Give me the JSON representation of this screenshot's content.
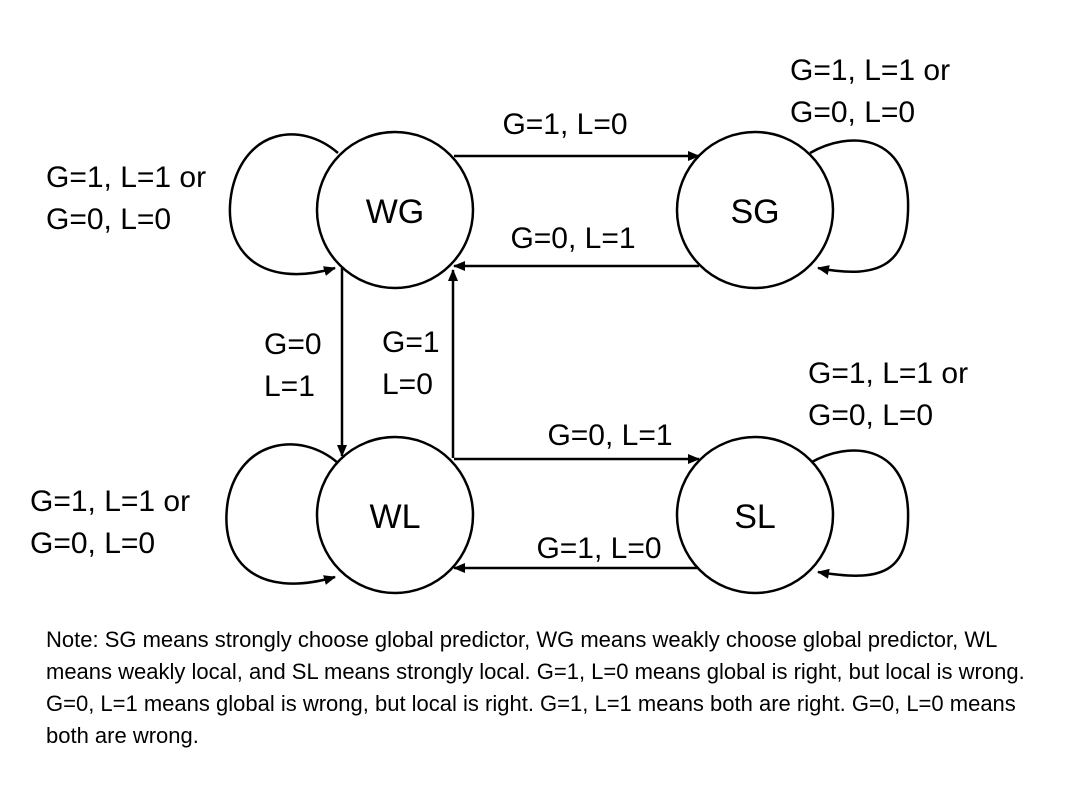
{
  "states": {
    "wg": "WG",
    "sg": "SG",
    "wl": "WL",
    "sl": "SL"
  },
  "transitions": {
    "wg_to_sg": "G=1, L=0",
    "sg_to_wg": "G=0, L=1",
    "wg_to_wl": [
      "G=0",
      "L=1"
    ],
    "wl_to_wg": [
      "G=1",
      "L=0"
    ],
    "wl_to_sl": "G=0, L=1",
    "sl_to_wl": "G=1, L=0"
  },
  "self_loops": {
    "wg": [
      "G=1, L=1 or",
      "G=0, L=0"
    ],
    "sg": [
      "G=1, L=1 or",
      "G=0, L=0"
    ],
    "wl": [
      "G=1, L=1 or",
      "G=0, L=0"
    ],
    "sl": [
      "G=1, L=1 or",
      "G=0, L=0"
    ]
  },
  "note": "Note: SG means strongly choose global predictor, WG means weakly choose global predictor, WL means weakly local, and SL means strongly local. G=1, L=0 means global is right, but local is wrong. G=0, L=1 means global is wrong, but local is right. G=1, L=1 means both are right. G=0, L=0 means both are wrong."
}
